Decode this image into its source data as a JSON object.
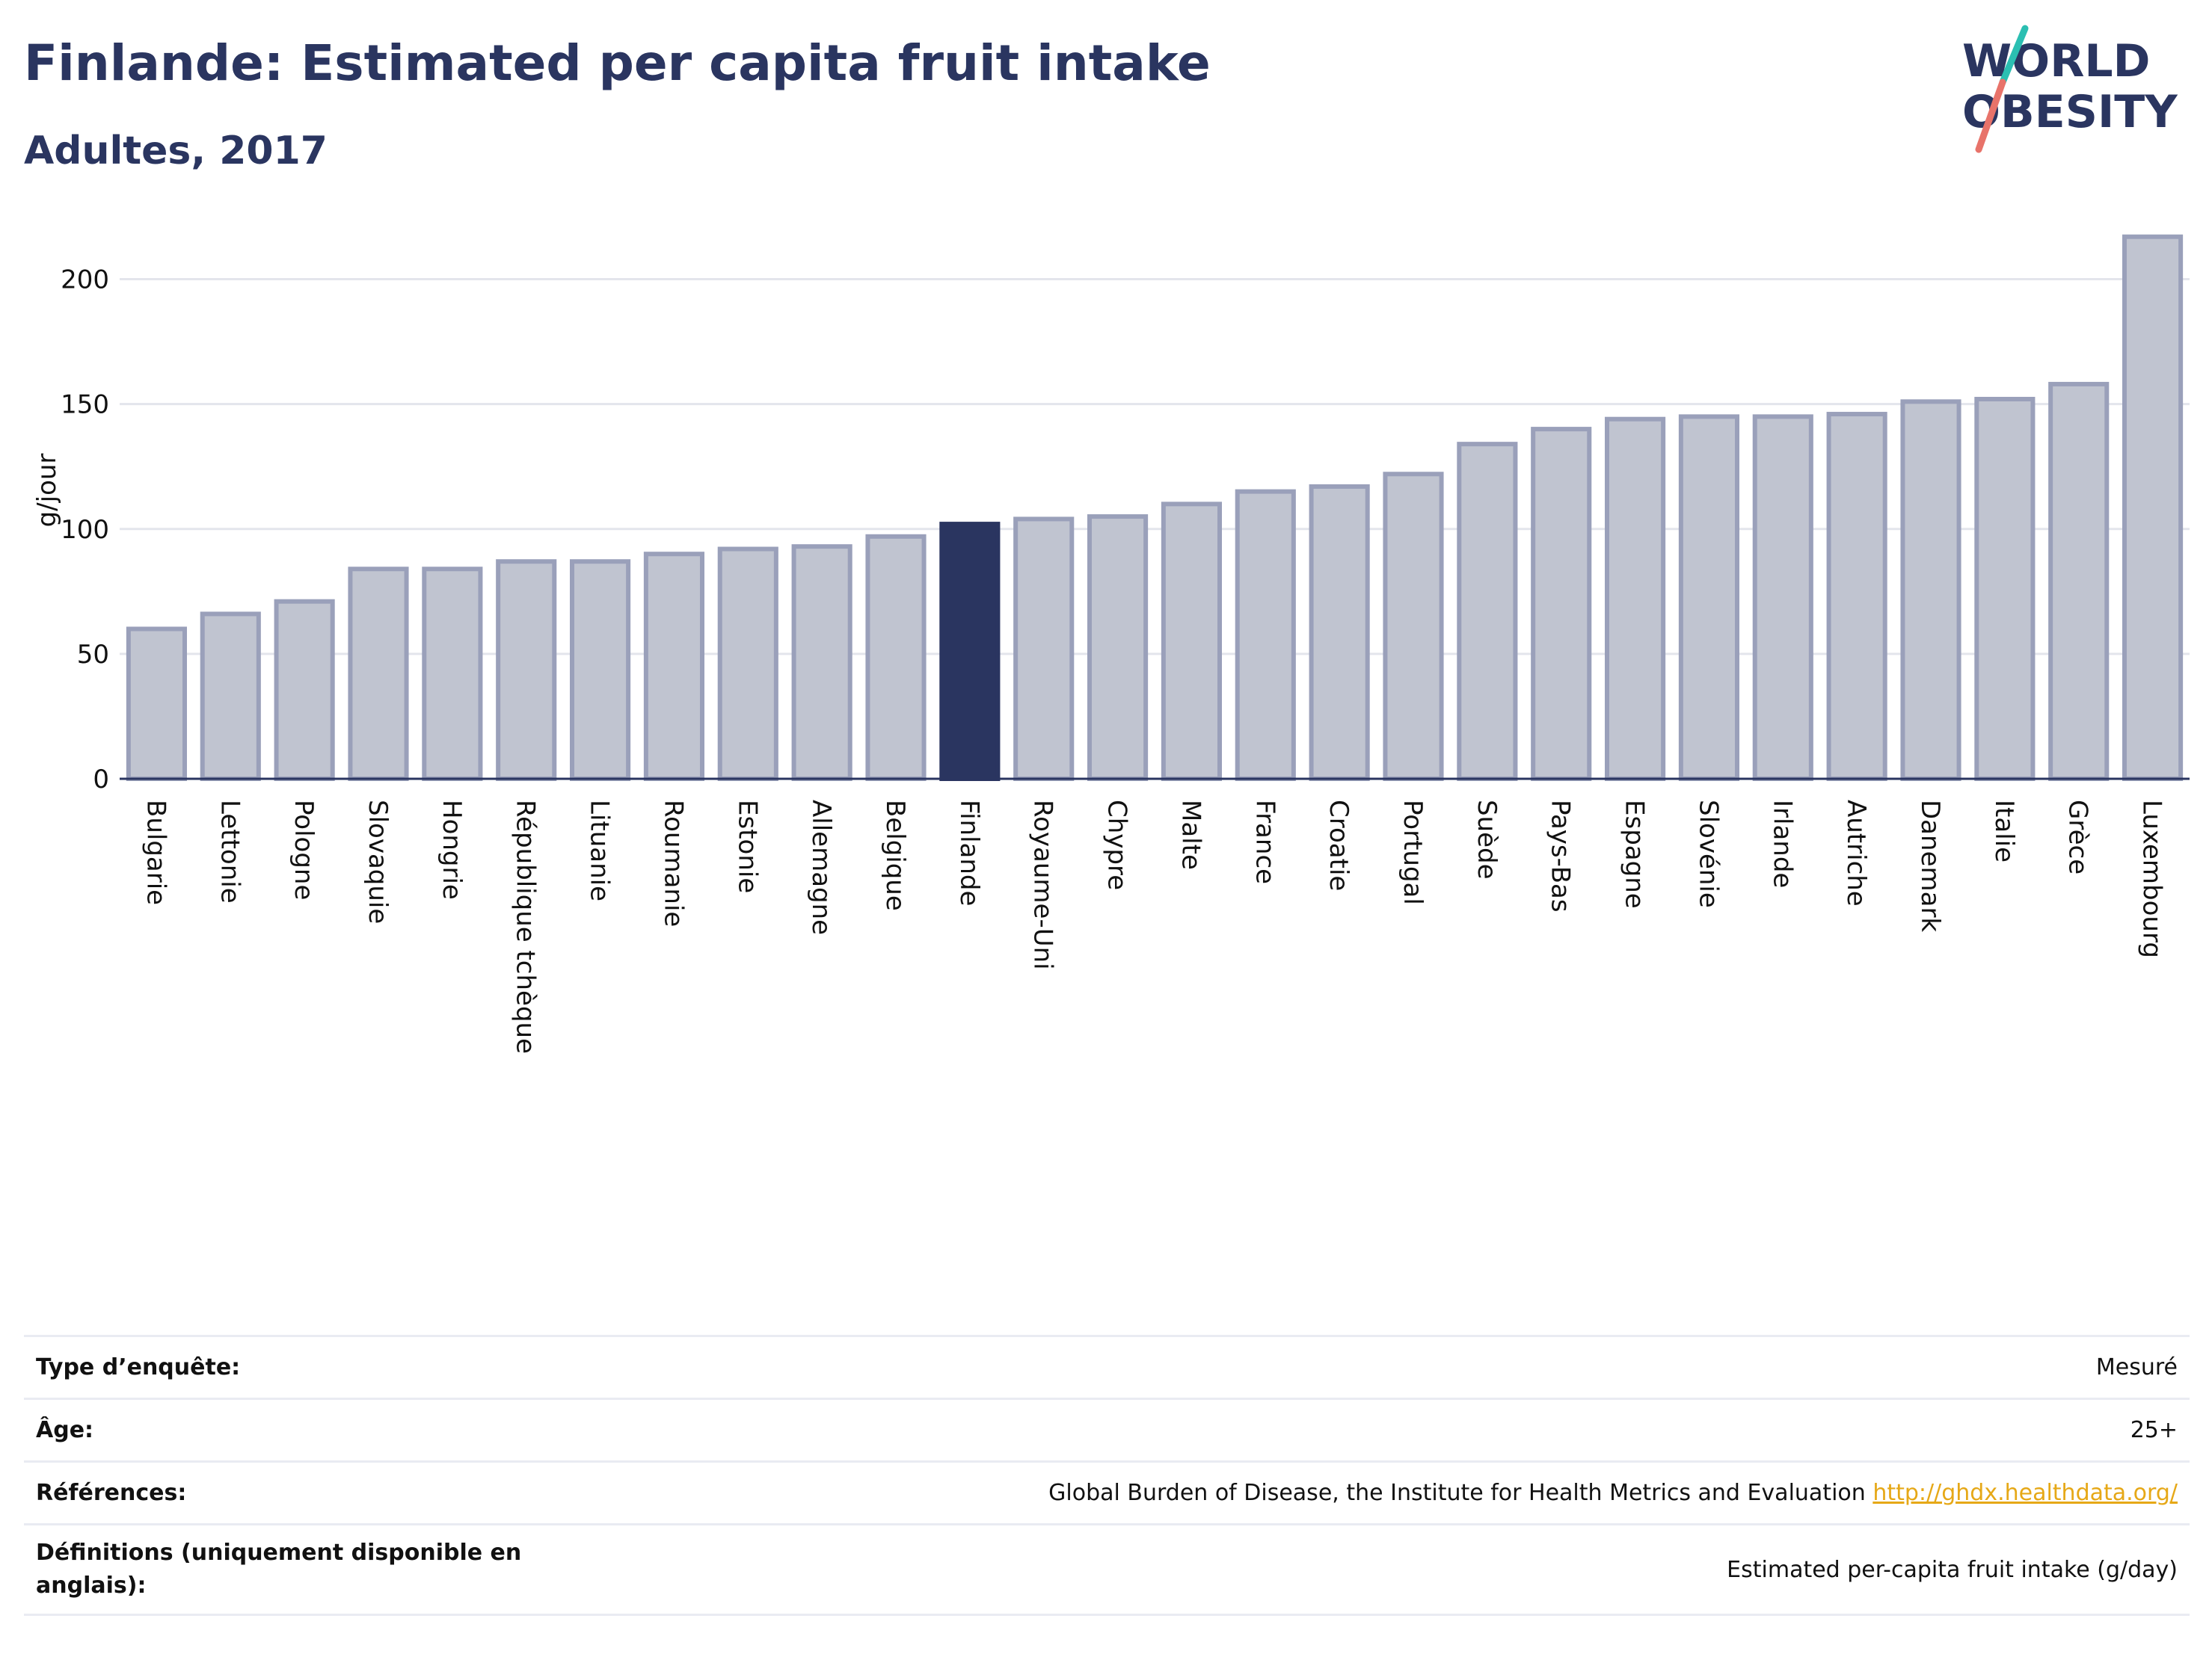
{
  "header": {
    "title": "Finlande: Estimated per capita fruit intake",
    "subtitle": "Adultes, 2017"
  },
  "logo": {
    "line1": "WORLD",
    "line2": "OBESITY"
  },
  "chart_data": {
    "type": "bar",
    "title": "Finlande: Estimated per capita fruit intake",
    "subtitle": "Adultes, 2017",
    "xlabel": "",
    "ylabel": "g/jour",
    "ylim": [
      0,
      225
    ],
    "yticks": [
      0,
      50,
      100,
      150,
      200
    ],
    "grid": true,
    "highlight": "Finlande",
    "colors": {
      "bar": "#c0c4d0",
      "bar_border": "#9aa0ba",
      "highlight": "#2a3560",
      "grid": "#e3e5ec",
      "axis": "#2a3560"
    },
    "categories": [
      "Bulgarie",
      "Lettonie",
      "Pologne",
      "Slovaquie",
      "Hongrie",
      "République tchèque",
      "Lituanie",
      "Roumanie",
      "Estonie",
      "Allemagne",
      "Belgique",
      "Finlande",
      "Royaume-Uni",
      "Chypre",
      "Malte",
      "France",
      "Croatie",
      "Portugal",
      "Suède",
      "Pays-Bas",
      "Espagne",
      "Slovénie",
      "Irlande",
      "Autriche",
      "Danemark",
      "Italie",
      "Grèce",
      "Luxembourg"
    ],
    "values": [
      60,
      66,
      71,
      84,
      84,
      87,
      87,
      90,
      92,
      93,
      97,
      102,
      104,
      105,
      110,
      115,
      117,
      122,
      134,
      140,
      144,
      145,
      145,
      146,
      151,
      152,
      158,
      217
    ]
  },
  "meta": {
    "rows": [
      {
        "key": "Type d’enquête:",
        "value": "Mesuré"
      },
      {
        "key": "Âge:",
        "value": "25+"
      },
      {
        "key": "Références:",
        "value": "Global Burden of Disease, the Institute for Health Metrics and Evaluation ",
        "link": "http://ghdx.healthdata.org/"
      },
      {
        "key": "Définitions (uniquement disponible en anglais):",
        "value": "Estimated per-capita fruit intake (g/day)"
      }
    ]
  }
}
